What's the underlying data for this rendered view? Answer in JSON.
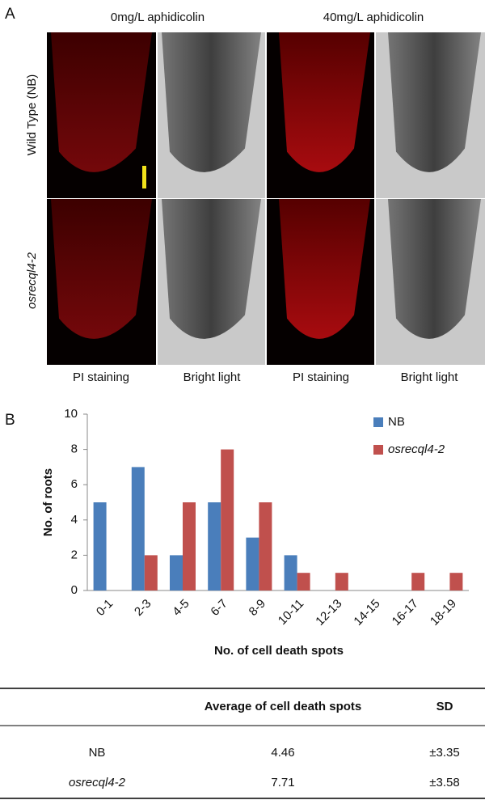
{
  "panel_a": {
    "label": "A",
    "columns": [
      "0mg/L aphidicolin",
      "40mg/L aphidicolin"
    ],
    "rows": [
      "Wild Type (NB)",
      "osrecql4-2"
    ],
    "image_labels": [
      "PI staining",
      "Bright light",
      "PI staining",
      "Bright light"
    ]
  },
  "panel_b_label": "B",
  "chart_data": {
    "type": "bar",
    "x_label": "No. of cell death spots",
    "y_label": "No. of roots",
    "categories": [
      "0-1",
      "2-3",
      "4-5",
      "6-7",
      "8-9",
      "10-11",
      "12-13",
      "14-15",
      "16-17",
      "18-19"
    ],
    "series": [
      {
        "name": "NB",
        "color": "#4a7ebb",
        "values": [
          5,
          7,
          2,
          5,
          3,
          2,
          0,
          0,
          0,
          0
        ]
      },
      {
        "name": "osrecql4-2",
        "color": "#c0504d",
        "values": [
          0,
          2,
          5,
          8,
          5,
          1,
          1,
          0,
          1,
          1
        ]
      }
    ],
    "ylim": [
      0,
      10
    ],
    "yticks": [
      0,
      2,
      4,
      6,
      8,
      10
    ],
    "grid": false,
    "legend": "top-right"
  },
  "table": {
    "headers": [
      "Average of cell death spots",
      "SD"
    ],
    "rows": [
      [
        "NB",
        4.46,
        "±3.35"
      ],
      [
        "osrecql4-2",
        7.71,
        "±3.58"
      ]
    ]
  }
}
